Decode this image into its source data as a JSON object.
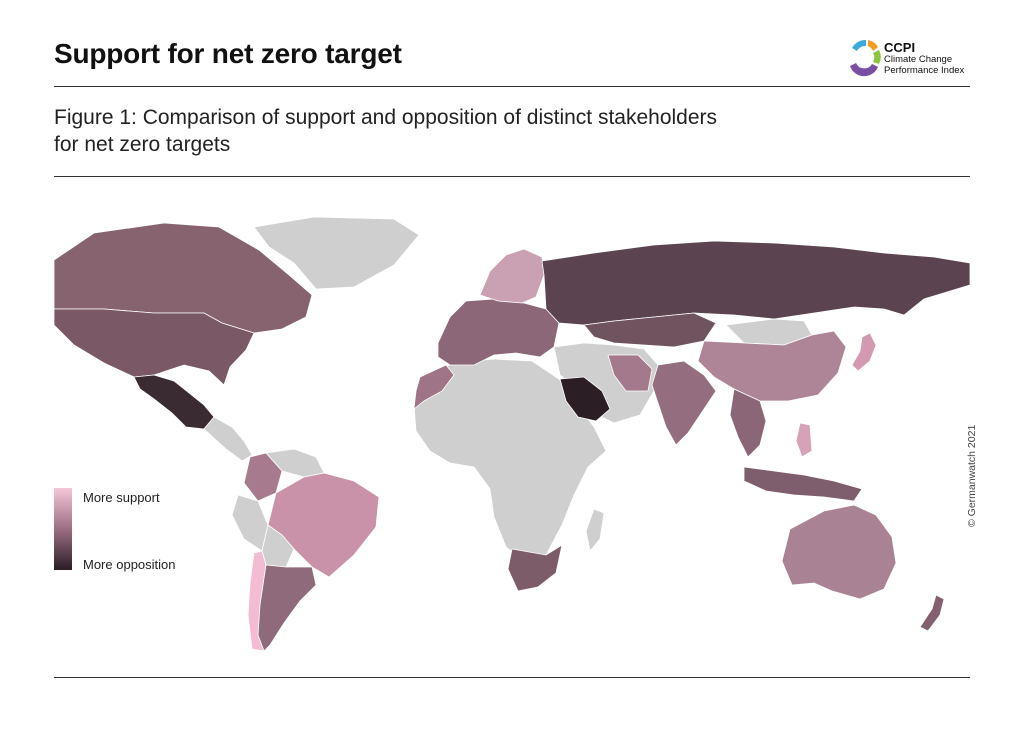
{
  "header": {
    "title": "Support for net zero target",
    "logo": {
      "acronym": "CCPI",
      "name_line1": "Climate Change",
      "name_line2": "Performance Index",
      "segment_colors": [
        "#3fa9dc",
        "#f29c1f",
        "#8cc63f",
        "#7a4ea3"
      ]
    }
  },
  "figure": {
    "caption_line1": "Figure 1: Comparison of support and opposition of distinct stakeholders",
    "caption_line2": "for net zero targets"
  },
  "legend": {
    "top_label": "More support",
    "bottom_label": "More opposition",
    "scale_colors": [
      "#f6c6d8",
      "#9c6e84",
      "#2a1e24"
    ]
  },
  "credit": "© Germanwatch 2021",
  "map": {
    "no_data_color": "#cfcfcf",
    "regions": [
      {
        "name": "Greenland",
        "color": "#cfcfcf"
      },
      {
        "name": "Canada",
        "color": "#86636f"
      },
      {
        "name": "United States",
        "color": "#7a5866"
      },
      {
        "name": "Mexico",
        "color": "#3a2a31"
      },
      {
        "name": "Central America",
        "color": "#cfcfcf"
      },
      {
        "name": "Colombia",
        "color": "#a87a8d"
      },
      {
        "name": "Venezuela",
        "color": "#cfcfcf"
      },
      {
        "name": "Brazil",
        "color": "#c992a9"
      },
      {
        "name": "Peru",
        "color": "#cfcfcf"
      },
      {
        "name": "Bolivia",
        "color": "#cfcfcf"
      },
      {
        "name": "Chile",
        "color": "#f3bcd2"
      },
      {
        "name": "Argentina",
        "color": "#8e6a7b"
      },
      {
        "name": "Europe",
        "color": "#8b6777"
      },
      {
        "name": "Nordics",
        "color": "#caa0b3"
      },
      {
        "name": "Russia",
        "color": "#5b4450"
      },
      {
        "name": "Kazakhstan",
        "color": "#6f5460"
      },
      {
        "name": "Mongolia",
        "color": "#cfcfcf"
      },
      {
        "name": "China",
        "color": "#ad8596"
      },
      {
        "name": "Japan",
        "color": "#d299b0"
      },
      {
        "name": "India",
        "color": "#946e7f"
      },
      {
        "name": "Iran",
        "color": "#a4798b"
      },
      {
        "name": "Saudi Arabia",
        "color": "#2b1f25"
      },
      {
        "name": "Middle East",
        "color": "#cfcfcf"
      },
      {
        "name": "Southeast Asia",
        "color": "#8a6676"
      },
      {
        "name": "Indonesia",
        "color": "#7e5d6c"
      },
      {
        "name": "Philippines",
        "color": "#d7a2b8"
      },
      {
        "name": "Australia",
        "color": "#a98394"
      },
      {
        "name": "New Zealand",
        "color": "#83606f"
      },
      {
        "name": "Africa",
        "color": "#cfcfcf"
      },
      {
        "name": "Morocco",
        "color": "#9e7486"
      },
      {
        "name": "South Africa",
        "color": "#7d5c6a"
      },
      {
        "name": "Madagascar",
        "color": "#cfcfcf"
      }
    ]
  }
}
